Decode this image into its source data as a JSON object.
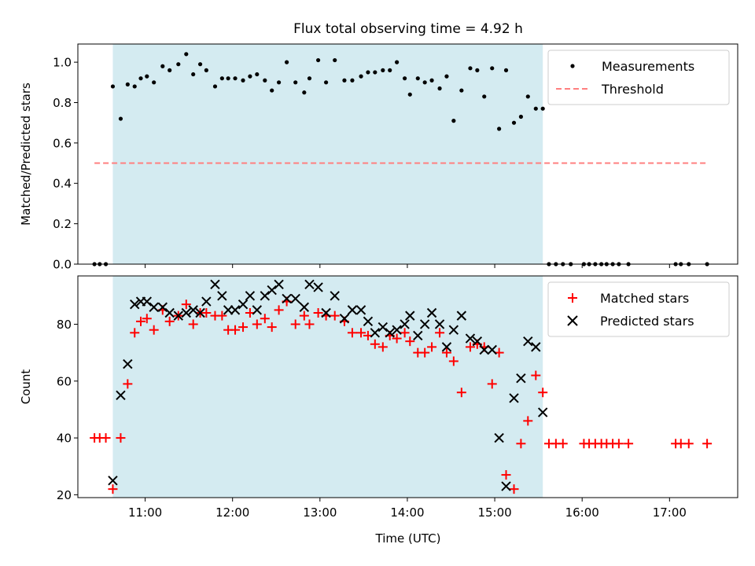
{
  "title": "Flux total observing time = 4.92 h",
  "colors": {
    "shade": "#d4ebf1",
    "measurement": "#000000",
    "threshold": "#ff7f7f",
    "matched": "#ff0000",
    "predicted": "#000000"
  },
  "chart_data": [
    {
      "type": "scatter",
      "ylabel": "Matched/Predicted stars",
      "xlim": [
        10.23,
        17.78
      ],
      "ylim": [
        0,
        1.09
      ],
      "yticks": [
        0.0,
        0.2,
        0.4,
        0.6,
        0.8,
        1.0
      ],
      "ytick_labels": [
        "0.0",
        "0.2",
        "0.4",
        "0.6",
        "0.8",
        "1.0"
      ],
      "shaded_interval": [
        10.63,
        15.55
      ],
      "legend_location": "upper right",
      "threshold": {
        "name": "Threshold",
        "y": 0.5,
        "x_range": [
          10.42,
          17.42
        ]
      },
      "series": [
        {
          "name": "Measurements",
          "x": [
            10.42,
            10.48,
            10.55,
            10.63,
            10.72,
            10.8,
            10.88,
            10.95,
            11.02,
            11.1,
            11.2,
            11.28,
            11.38,
            11.47,
            11.55,
            11.63,
            11.7,
            11.8,
            11.88,
            11.95,
            12.03,
            12.12,
            12.2,
            12.28,
            12.37,
            12.45,
            12.53,
            12.62,
            12.72,
            12.82,
            12.88,
            12.98,
            13.07,
            13.17,
            13.28,
            13.37,
            13.47,
            13.55,
            13.63,
            13.72,
            13.8,
            13.88,
            13.97,
            14.03,
            14.12,
            14.2,
            14.28,
            14.37,
            14.45,
            14.53,
            14.62,
            14.72,
            14.8,
            14.88,
            14.97,
            15.05,
            15.13,
            15.22,
            15.3,
            15.38,
            15.47,
            15.55,
            15.62,
            15.7,
            15.78,
            15.87,
            16.02,
            16.08,
            16.15,
            16.22,
            16.28,
            16.35,
            16.42,
            16.53,
            17.07,
            17.13,
            17.22,
            17.43
          ],
          "y": [
            0,
            0,
            0,
            0.88,
            0.72,
            0.89,
            0.88,
            0.92,
            0.93,
            0.9,
            0.98,
            0.96,
            0.99,
            1.04,
            0.94,
            0.99,
            0.96,
            0.88,
            0.92,
            0.92,
            0.92,
            0.91,
            0.93,
            0.94,
            0.91,
            0.86,
            0.9,
            1.0,
            0.9,
            0.85,
            0.92,
            1.01,
            0.9,
            1.01,
            0.91,
            0.91,
            0.93,
            0.95,
            0.95,
            0.96,
            0.96,
            1.0,
            0.92,
            0.84,
            0.92,
            0.9,
            0.91,
            0.87,
            0.93,
            0.71,
            0.86,
            0.97,
            0.96,
            0.83,
            0.97,
            0.67,
            0.96,
            0.7,
            0.73,
            0.83,
            0.77,
            0.77,
            0,
            0,
            0,
            0,
            0,
            0,
            0,
            0,
            0,
            0,
            0,
            0,
            0,
            0,
            0,
            0
          ]
        }
      ]
    },
    {
      "type": "scatter",
      "xlabel": "Time (UTC)",
      "ylabel": "Count",
      "xlim": [
        10.23,
        17.78
      ],
      "ylim": [
        19,
        97
      ],
      "yticks": [
        20,
        40,
        60,
        80
      ],
      "ytick_labels": [
        "20",
        "40",
        "60",
        "80"
      ],
      "xticks": [
        11,
        12,
        13,
        14,
        15,
        16,
        17
      ],
      "xtick_labels": [
        "11:00",
        "12:00",
        "13:00",
        "14:00",
        "15:00",
        "16:00",
        "17:00"
      ],
      "shaded_interval": [
        10.63,
        15.55
      ],
      "legend_location": "upper right",
      "series": [
        {
          "name": "Matched stars",
          "marker": "+",
          "x": [
            10.42,
            10.48,
            10.55,
            10.63,
            10.72,
            10.8,
            10.88,
            10.95,
            11.02,
            11.1,
            11.2,
            11.28,
            11.38,
            11.47,
            11.55,
            11.63,
            11.7,
            11.8,
            11.88,
            11.95,
            12.03,
            12.12,
            12.2,
            12.28,
            12.37,
            12.45,
            12.53,
            12.62,
            12.72,
            12.82,
            12.88,
            12.98,
            13.07,
            13.17,
            13.28,
            13.37,
            13.47,
            13.55,
            13.63,
            13.72,
            13.8,
            13.88,
            13.97,
            14.03,
            14.12,
            14.2,
            14.28,
            14.37,
            14.45,
            14.53,
            14.62,
            14.72,
            14.8,
            14.88,
            14.97,
            15.05,
            15.13,
            15.22,
            15.3,
            15.38,
            15.47,
            15.55,
            15.62,
            15.7,
            15.78,
            16.02,
            16.08,
            16.15,
            16.22,
            16.28,
            16.35,
            16.42,
            16.53,
            17.07,
            17.13,
            17.22,
            17.43
          ],
          "y": [
            40,
            40,
            40,
            22,
            40,
            59,
            77,
            81,
            82,
            78,
            85,
            81,
            83,
            87,
            80,
            84,
            84,
            83,
            83,
            78,
            78,
            79,
            84,
            80,
            82,
            79,
            85,
            88,
            80,
            83,
            80,
            84,
            83,
            83,
            81,
            77,
            77,
            76,
            73,
            72,
            76,
            75,
            77,
            74,
            70,
            70,
            72,
            77,
            70,
            67,
            56,
            72,
            73,
            72,
            59,
            70,
            27,
            22,
            38,
            46,
            62,
            56,
            38,
            38,
            38,
            38,
            38,
            38,
            38,
            38,
            38,
            38,
            38,
            38,
            38,
            38,
            38
          ]
        },
        {
          "name": "Predicted stars",
          "marker": "x",
          "x": [
            10.63,
            10.72,
            10.8,
            10.88,
            10.95,
            11.02,
            11.1,
            11.2,
            11.28,
            11.38,
            11.47,
            11.55,
            11.63,
            11.7,
            11.8,
            11.88,
            11.95,
            12.03,
            12.12,
            12.2,
            12.28,
            12.37,
            12.45,
            12.53,
            12.62,
            12.72,
            12.82,
            12.88,
            12.98,
            13.07,
            13.17,
            13.28,
            13.37,
            13.47,
            13.55,
            13.63,
            13.72,
            13.8,
            13.88,
            13.97,
            14.03,
            14.12,
            14.2,
            14.28,
            14.37,
            14.45,
            14.53,
            14.62,
            14.72,
            14.8,
            14.88,
            14.97,
            15.05,
            15.13,
            15.22,
            15.3,
            15.38,
            15.47,
            15.55
          ],
          "y": [
            25,
            55,
            66,
            87,
            88,
            88,
            86,
            86,
            84,
            83,
            84,
            85,
            84,
            88,
            94,
            90,
            85,
            85,
            87,
            90,
            85,
            90,
            92,
            94,
            89,
            89,
            86,
            94,
            93,
            84,
            90,
            82,
            85,
            85,
            81,
            77,
            79,
            77,
            78,
            80,
            83,
            76,
            80,
            84,
            80,
            72,
            78,
            83,
            75,
            74,
            71,
            71,
            40,
            23,
            54,
            61,
            74,
            72,
            49
          ]
        }
      ]
    }
  ]
}
